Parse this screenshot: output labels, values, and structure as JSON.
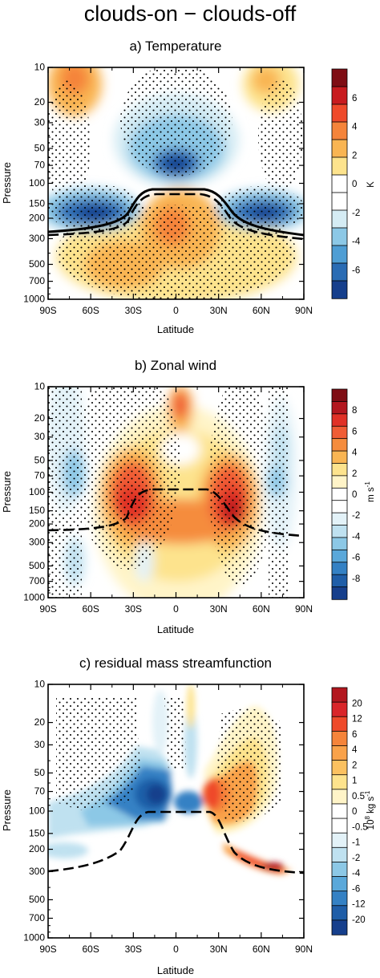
{
  "figure": {
    "title": "clouds-on − clouds-off"
  },
  "chart_data": [
    {
      "type": "heatmap",
      "title": "a) Temperature",
      "xlabel": "Latitude",
      "ylabel": "Pressure",
      "x_ticks": [
        "90S",
        "60S",
        "30S",
        "0",
        "30N",
        "60N",
        "90N"
      ],
      "x_values": [
        -90,
        -60,
        -30,
        0,
        30,
        60,
        90
      ],
      "y_ticks": [
        "10",
        "20",
        "30",
        "50",
        "70",
        "100",
        "150",
        "200",
        "300",
        "500",
        "700",
        "1000"
      ],
      "y_values": [
        10,
        20,
        30,
        50,
        70,
        100,
        150,
        200,
        300,
        500,
        700,
        1000
      ],
      "y_scale": "log",
      "colorbar": {
        "unit": "K",
        "labels": [
          "6",
          "4",
          "2",
          "0",
          "-2",
          "-4",
          "-6"
        ],
        "colors": [
          "#7f0d14",
          "#c81b1f",
          "#ef4a2b",
          "#f5843a",
          "#f9b553",
          "#fde38d",
          "#ffffff",
          "#ffffff",
          "#d5ecf4",
          "#8cc8e6",
          "#4f9ed4",
          "#2a6cb4",
          "#163f8c"
        ]
      },
      "field": [
        {
          "lat": -60,
          "p": 15,
          "v": 3
        },
        {
          "lat": 45,
          "p": 15,
          "v": 2.5
        },
        {
          "lat": 0,
          "p": 45,
          "v": -2
        },
        {
          "lat": 0,
          "p": 75,
          "v": -5
        },
        {
          "lat": -55,
          "p": 190,
          "v": -6
        },
        {
          "lat": 55,
          "p": 190,
          "v": -5
        },
        {
          "lat": 0,
          "p": 260,
          "v": 3
        },
        {
          "lat": -15,
          "p": 470,
          "v": 2
        }
      ],
      "tropopause_lines": [
        "solid",
        "dashed"
      ]
    },
    {
      "type": "heatmap",
      "title": "b) Zonal wind",
      "xlabel": "Latitude",
      "ylabel": "Pressure",
      "x_ticks": [
        "90S",
        "60S",
        "30S",
        "0",
        "30N",
        "60N",
        "90N"
      ],
      "x_values": [
        -90,
        -60,
        -30,
        0,
        30,
        60,
        90
      ],
      "y_ticks": [
        "10",
        "20",
        "30",
        "50",
        "70",
        "100",
        "150",
        "200",
        "300",
        "500",
        "700",
        "1000"
      ],
      "y_values": [
        10,
        20,
        30,
        50,
        70,
        100,
        150,
        200,
        300,
        500,
        700,
        1000
      ],
      "y_scale": "log",
      "colorbar": {
        "unit": "m s",
        "unit_exp": "-1",
        "labels": [
          "8",
          "6",
          "4",
          "2",
          "0",
          "-2",
          "-4",
          "-6",
          "-8"
        ],
        "colors": [
          "#7f0d14",
          "#b3171f",
          "#e03127",
          "#f05c35",
          "#f58c3d",
          "#f9b553",
          "#fde38d",
          "#fff4c8",
          "#ffffff",
          "#ffffff",
          "#e3f2f8",
          "#bfe1f0",
          "#8cc8e6",
          "#5aa8da",
          "#3481c4",
          "#1f5ea8",
          "#163f8c"
        ]
      },
      "field": [
        {
          "lat": 0,
          "p": 15,
          "v": 5
        },
        {
          "lat": -25,
          "p": 110,
          "v": 7
        },
        {
          "lat": 30,
          "p": 110,
          "v": 8
        },
        {
          "lat": 0,
          "p": 150,
          "v": 4
        },
        {
          "lat": -65,
          "p": 70,
          "v": -2
        },
        {
          "lat": 60,
          "p": 70,
          "v": -2
        }
      ],
      "tropopause_lines": [
        "dashed"
      ]
    },
    {
      "type": "heatmap",
      "title": "c) residual mass streamfunction",
      "xlabel": "Latitude",
      "ylabel": "Pressure",
      "x_ticks": [
        "90S",
        "60S",
        "30S",
        "0",
        "30N",
        "60N",
        "90N"
      ],
      "x_values": [
        -90,
        -60,
        -30,
        0,
        30,
        60,
        90
      ],
      "y_ticks": [
        "10",
        "20",
        "30",
        "50",
        "70",
        "100",
        "150",
        "200",
        "300",
        "500",
        "700",
        "1000"
      ],
      "y_values": [
        10,
        20,
        30,
        50,
        70,
        100,
        150,
        200,
        300,
        500,
        700,
        1000
      ],
      "y_scale": "log",
      "colorbar": {
        "unit_base": "10",
        "unit_exp": "8",
        "unit_rest": " kg s",
        "unit_exp2": "-1",
        "labels": [
          "20",
          "12",
          "6",
          "4",
          "2",
          "1",
          "0.5",
          "0",
          "-0.5",
          "-1",
          "-2",
          "-4",
          "-6",
          "-12",
          "-20"
        ],
        "colors": [
          "#b3171f",
          "#d9252a",
          "#ef4a2b",
          "#f5843a",
          "#f9a24a",
          "#fbc160",
          "#fde38d",
          "#fff4c8",
          "#ffffff",
          "#ffffff",
          "#e3f2f8",
          "#bfe1f0",
          "#8cc8e6",
          "#5aa8da",
          "#3481c4",
          "#1f5ea8",
          "#163f8c"
        ]
      },
      "field": [
        {
          "lat": -15,
          "p": 100,
          "v": -12
        },
        {
          "lat": 35,
          "p": 90,
          "v": 12
        },
        {
          "lat": 65,
          "p": 250,
          "v": 20
        },
        {
          "lat": -70,
          "p": 250,
          "v": -2
        }
      ],
      "tropopause_lines": [
        "dashed"
      ]
    }
  ]
}
